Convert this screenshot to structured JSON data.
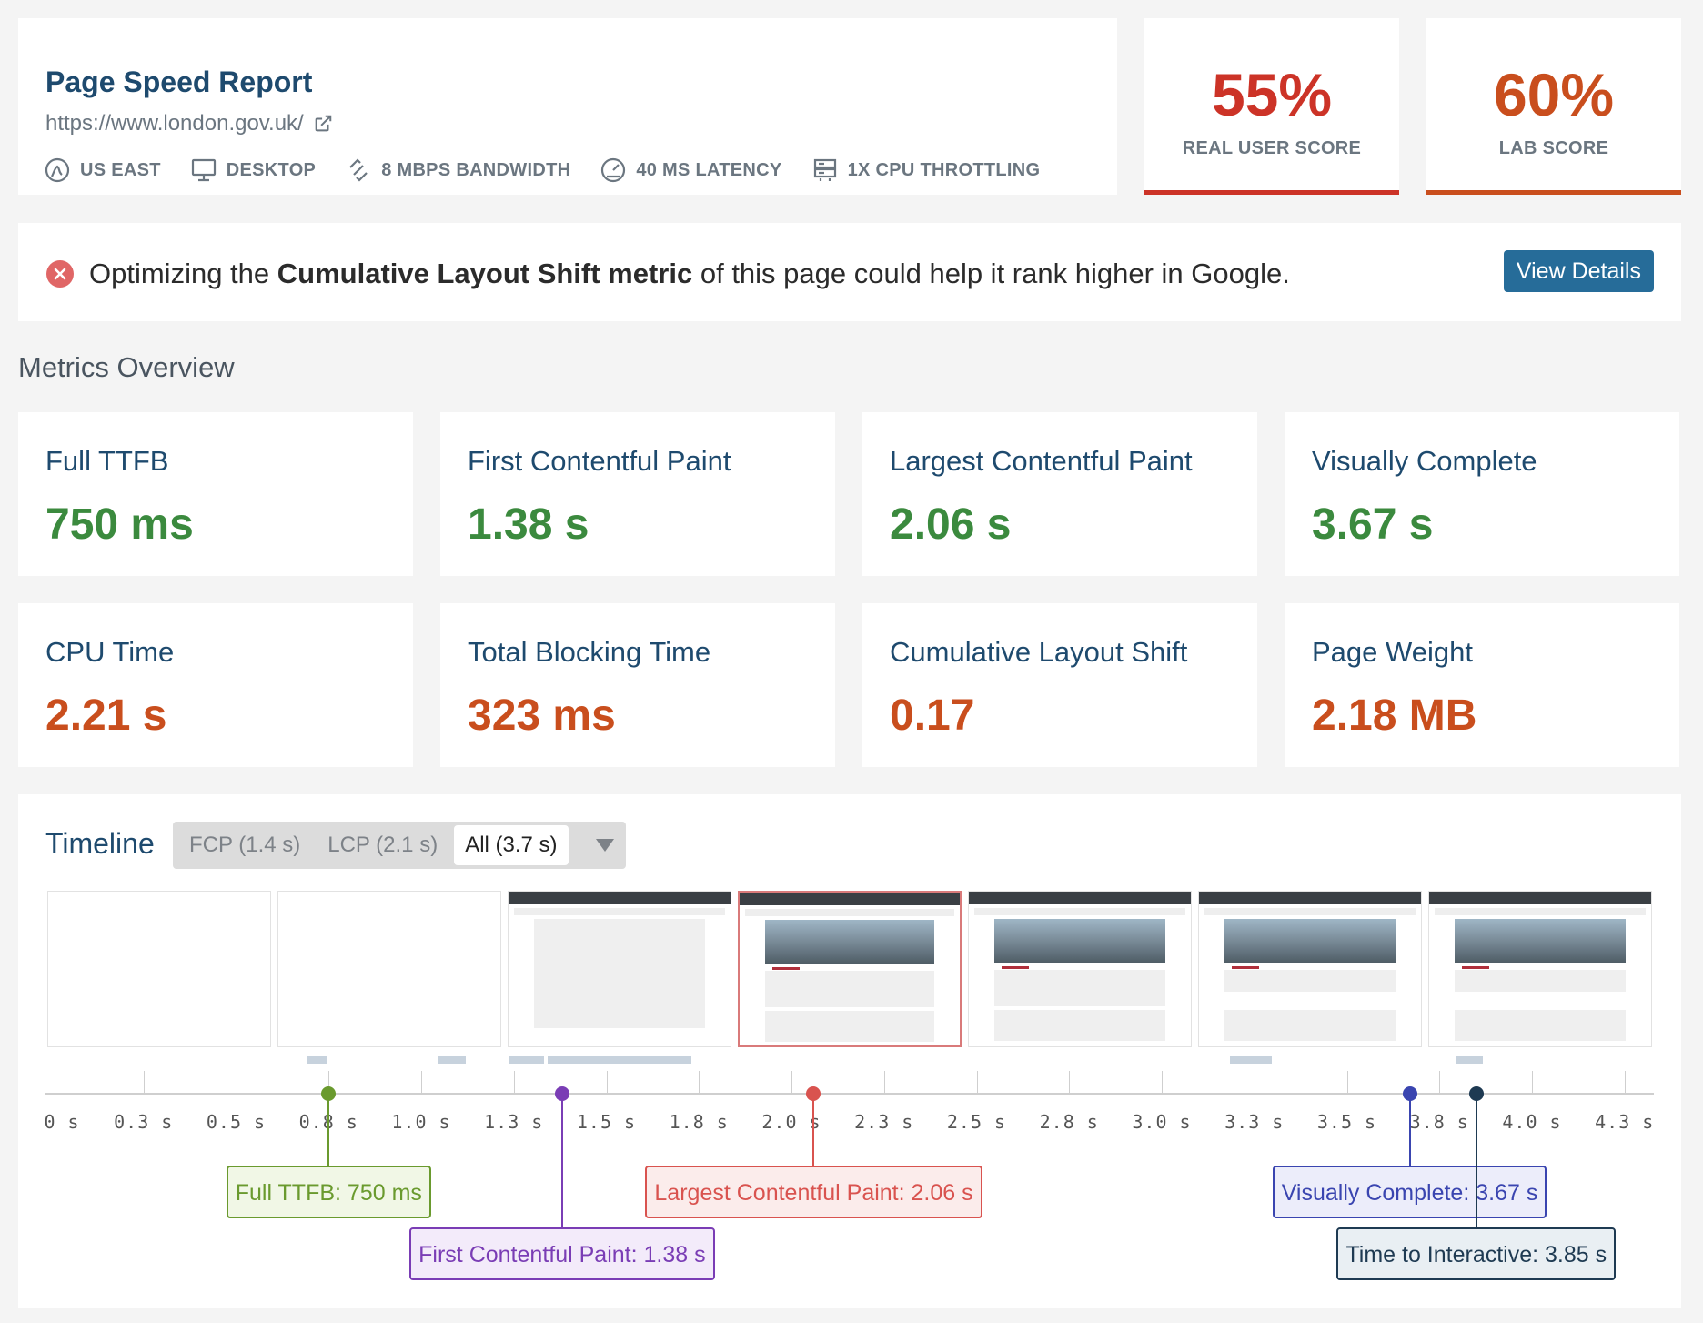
{
  "header": {
    "title": "Page Speed Report",
    "url": "https://www.london.gov.uk/",
    "settings": [
      {
        "icon": "location-pin-icon",
        "label": "US EAST"
      },
      {
        "icon": "desktop-icon",
        "label": "DESKTOP"
      },
      {
        "icon": "bandwidth-icon",
        "label": "8 MBPS BANDWIDTH"
      },
      {
        "icon": "latency-gauge-icon",
        "label": "40 MS LATENCY"
      },
      {
        "icon": "cpu-icon",
        "label": "1X CPU THROTTLING"
      }
    ]
  },
  "scores": {
    "real_user": {
      "value": "55%",
      "label": "REAL USER SCORE",
      "color": "#cc3327"
    },
    "lab": {
      "value": "60%",
      "label": "LAB SCORE",
      "color": "#c94e1d"
    }
  },
  "alert": {
    "prefix": "Optimizing the ",
    "highlight": "Cumulative Layout Shift metric",
    "suffix": " of this page could help it rank higher in Google.",
    "button": "View Details"
  },
  "metrics_heading": "Metrics Overview",
  "metrics": [
    {
      "label": "Full TTFB",
      "value": "750 ms",
      "status": "good"
    },
    {
      "label": "First Contentful Paint",
      "value": "1.38 s",
      "status": "good"
    },
    {
      "label": "Largest Contentful Paint",
      "value": "2.06 s",
      "status": "good"
    },
    {
      "label": "Visually Complete",
      "value": "3.67 s",
      "status": "good"
    },
    {
      "label": "CPU Time",
      "value": "2.21 s",
      "status": "poor"
    },
    {
      "label": "Total Blocking Time",
      "value": "323 ms",
      "status": "poor"
    },
    {
      "label": "Cumulative Layout Shift",
      "value": "0.17",
      "status": "poor"
    },
    {
      "label": "Page Weight",
      "value": "2.18 MB",
      "status": "poor"
    }
  ],
  "timeline": {
    "title": "Timeline",
    "tabs": [
      "FCP (1.4 s)",
      "LCP (2.1 s)",
      "All (3.7 s)"
    ],
    "active_tab": 2,
    "axis_labels": [
      "0 s",
      "0.3 s",
      "0.5 s",
      "0.8 s",
      "1.0 s",
      "1.3 s",
      "1.5 s",
      "1.8 s",
      "2.0 s",
      "2.3 s",
      "2.5 s",
      "2.8 s",
      "3.0 s",
      "3.3 s",
      "3.5 s",
      "3.8 s",
      "4.0 s",
      "4.3 s"
    ],
    "axis_values": [
      0,
      0.25,
      0.5,
      0.75,
      1.0,
      1.25,
      1.5,
      1.75,
      2.0,
      2.25,
      2.5,
      2.75,
      3.0,
      3.25,
      3.5,
      3.75,
      4.0,
      4.25
    ],
    "frames": [
      {
        "state": "blank"
      },
      {
        "state": "blank"
      },
      {
        "state": "partial"
      },
      {
        "state": "hero",
        "highlight": true
      },
      {
        "state": "hero"
      },
      {
        "state": "full"
      },
      {
        "state": "full"
      }
    ],
    "markers": [
      {
        "label": "Full TTFB: 750 ms",
        "time": 0.75,
        "color": "#6a9a2e",
        "bg": "#f1f7e6",
        "row": 1
      },
      {
        "label": "First Contentful Paint: 1.38 s",
        "time": 1.38,
        "color": "#7a3db5",
        "bg": "#f3ebfa",
        "row": 2
      },
      {
        "label": "Largest Contentful Paint: 2.06 s",
        "time": 2.06,
        "color": "#d9534f",
        "bg": "#fbeceb",
        "row": 1
      },
      {
        "label": "Visually Complete: 3.67 s",
        "time": 3.67,
        "color": "#3a45b0",
        "bg": "#ecedfa",
        "row": 1
      },
      {
        "label": "Time to Interactive: 3.85 s",
        "time": 3.85,
        "color": "#1e3a52",
        "bg": "#e9eff3",
        "row": 2
      }
    ]
  }
}
